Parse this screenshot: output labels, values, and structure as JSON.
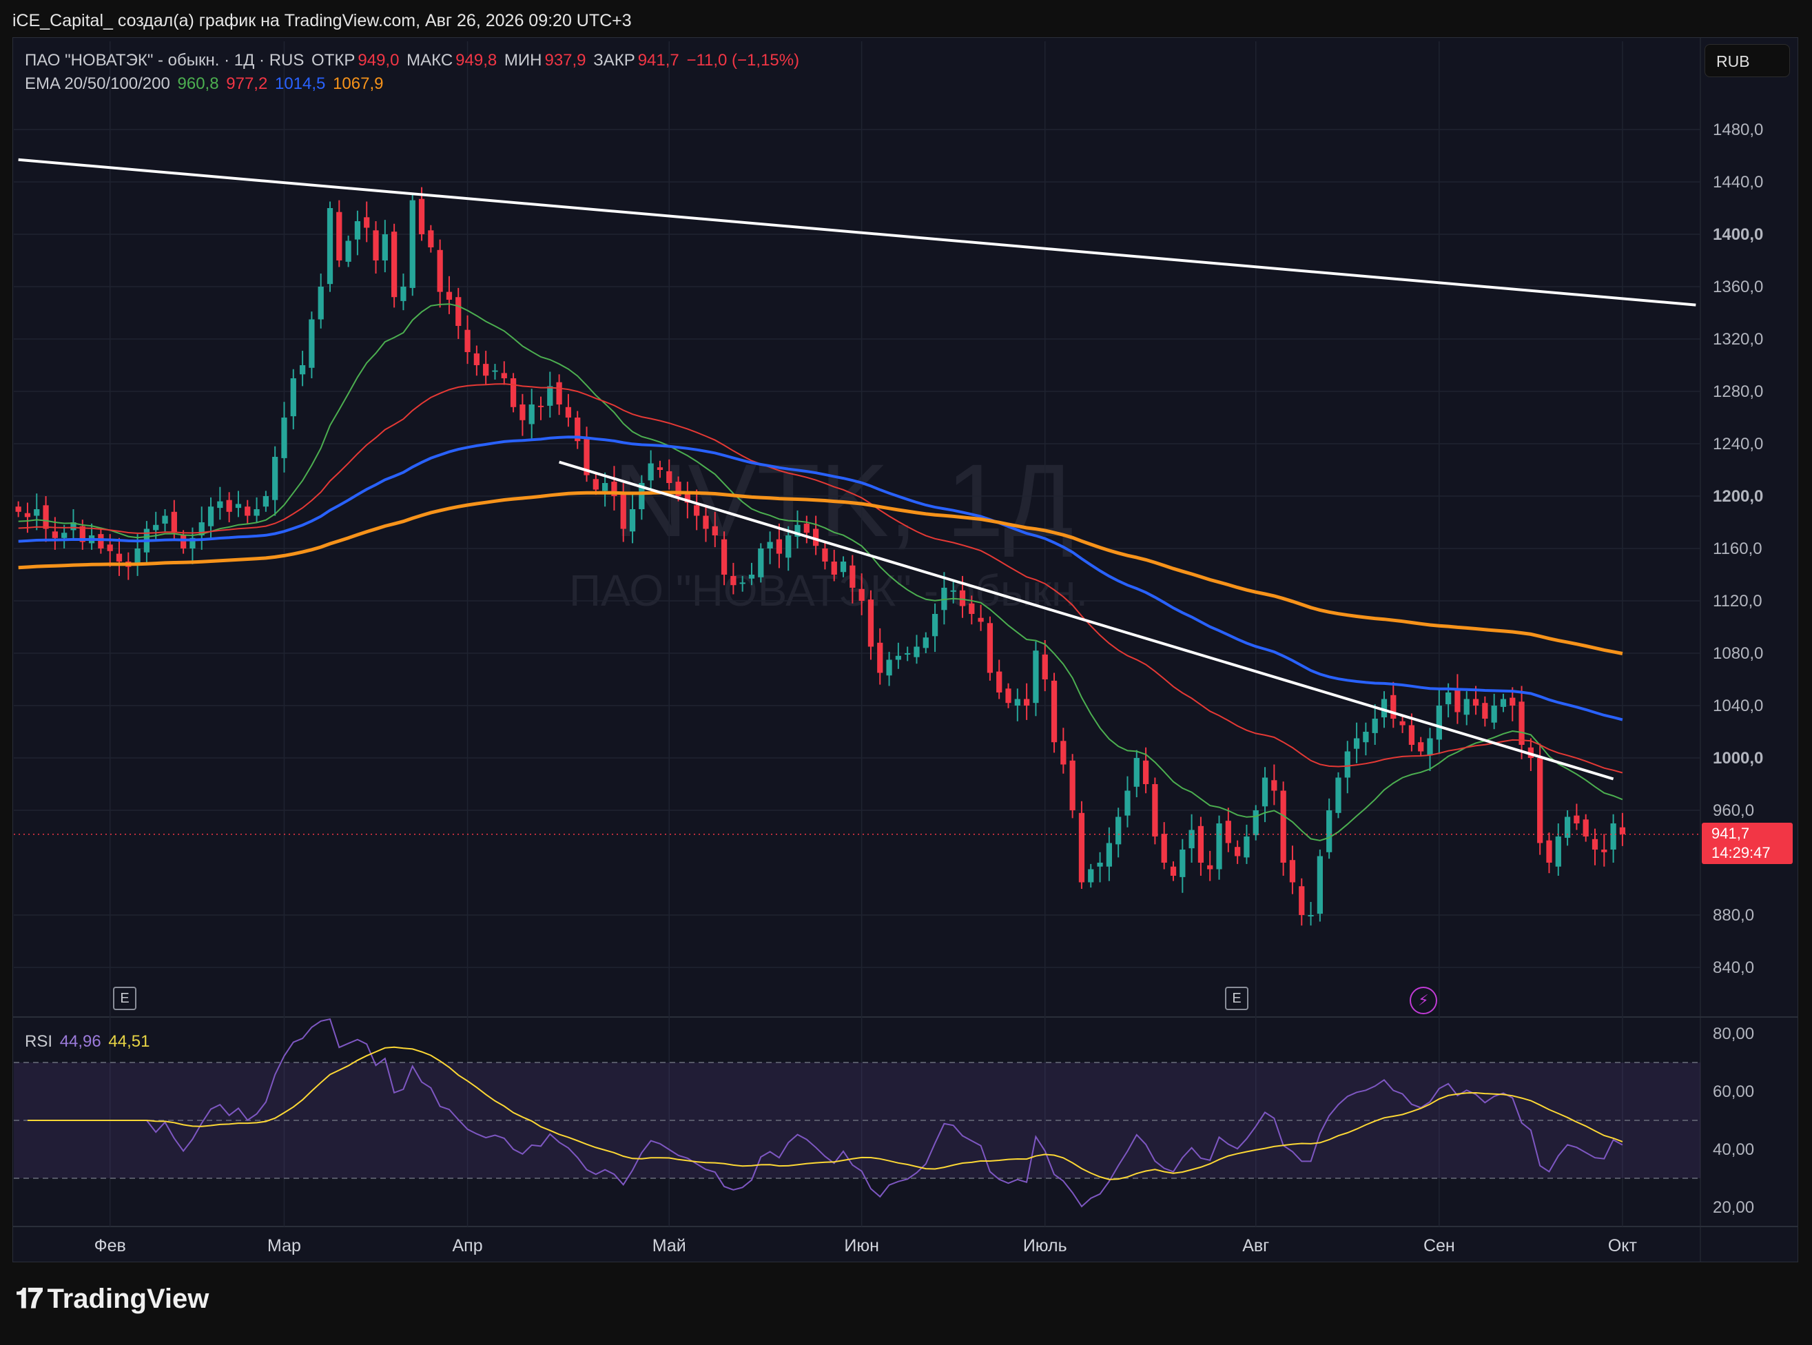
{
  "header": {
    "title": "iCE_Capital_ создал(а) график на TradingView.com, Авг 26, 2026 09:20 UTC+3"
  },
  "legend": {
    "symbol": "ПАО \"НОВАТЭК\" - обыкн. · 1Д · RUS",
    "open_label": "ОТКР",
    "open": "949,0",
    "high_label": "МАКС",
    "high": "949,8",
    "low_label": "МИН",
    "low": "937,9",
    "close_label": "ЗАКР",
    "close": "941,7",
    "change": "−11,0 (−1,15%)",
    "ema_label": "EMA 20/50/100/200",
    "ema20": "960,8",
    "ema50": "977,2",
    "ema100": "1014,5",
    "ema200": "1067,9",
    "rsi_label": "RSI",
    "rsi": "44,96",
    "rsi_ma": "44,51"
  },
  "currency": "RUB",
  "event_marker": "E",
  "price_tag": {
    "price": "941,7",
    "countdown": "14:29:47"
  },
  "watermark": {
    "ticker": "NVTK, 1Д",
    "name": "ПАО \"НОВАТЭК\" - обыкн."
  },
  "footer": {
    "brand": "TradingView"
  },
  "colors": {
    "up": "#26a69a",
    "down": "#f23645",
    "ema20": "#4caf50",
    "ema50": "#e53935",
    "ema100": "#2962ff",
    "ema200": "#f7931a",
    "rsi": "#7e57c2",
    "rsi_ma": "#fdd835"
  },
  "chart_data": [
    {
      "type": "candlestick",
      "title": "ПАО \"НОВАТЭК\" - обыкн. · 1Д · RUS",
      "ylim": [
        820,
        1480
      ],
      "yticks": [
        1480,
        1440,
        1400,
        1360,
        1320,
        1280,
        1240,
        1200,
        1160,
        1120,
        1080,
        1040,
        1000,
        960,
        880,
        840
      ],
      "ytick_labels": [
        "1480,0",
        "1440,0",
        "1400,0",
        "1360,0",
        "1320,0",
        "1280,0",
        "1240,0",
        "1200,0",
        "1160,0",
        "1120,0",
        "1080,0",
        "1040,0",
        "1000,0",
        "960,0",
        "880,0",
        "840,0"
      ],
      "x_months": [
        "Фев",
        "Мар",
        "Апр",
        "Май",
        "Июн",
        "Июль",
        "Авг",
        "Сен",
        "Окт"
      ],
      "x_month_day_index": [
        10,
        29,
        49,
        71,
        92,
        112,
        135,
        155,
        175
      ],
      "current_price": 941.7,
      "closes": [
        1188,
        1184,
        1190,
        1175,
        1168,
        1172,
        1180,
        1165,
        1170,
        1160,
        1158,
        1150,
        1146,
        1160,
        1175,
        1178,
        1185,
        1172,
        1160,
        1168,
        1180,
        1192,
        1196,
        1188,
        1194,
        1185,
        1190,
        1200,
        1230,
        1260,
        1290,
        1300,
        1335,
        1360,
        1420,
        1380,
        1395,
        1410,
        1405,
        1380,
        1400,
        1352,
        1360,
        1426,
        1400,
        1390,
        1356,
        1350,
        1330,
        1310,
        1300,
        1292,
        1296,
        1290,
        1268,
        1258,
        1270,
        1268,
        1284,
        1270,
        1260,
        1242,
        1216,
        1205,
        1210,
        1200,
        1175,
        1190,
        1210,
        1225,
        1220,
        1210,
        1200,
        1195,
        1185,
        1175,
        1170,
        1140,
        1132,
        1134,
        1140,
        1160,
        1165,
        1156,
        1170,
        1178,
        1172,
        1162,
        1150,
        1140,
        1150,
        1130,
        1120,
        1085,
        1065,
        1075,
        1078,
        1080,
        1085,
        1092,
        1110,
        1130,
        1128,
        1116,
        1110,
        1104,
        1065,
        1050,
        1042,
        1045,
        1040,
        1082,
        1060,
        1012,
        995,
        960,
        905,
        915,
        920,
        935,
        955,
        975,
        1000,
        980,
        940,
        920,
        910,
        930,
        945,
        920,
        915,
        950,
        935,
        925,
        940,
        960,
        985,
        975,
        920,
        905,
        880,
        880,
        925,
        960,
        985,
        1005,
        1015,
        1020,
        1030,
        1045,
        1030,
        1025,
        1010,
        1005,
        1015,
        1040,
        1050,
        1035,
        1045,
        1040,
        1030,
        1040,
        1045,
        1040,
        1010,
        1000,
        935,
        920,
        940,
        955,
        950,
        940,
        930,
        928,
        950,
        941.7
      ],
      "ema": {
        "ema20": 960.8,
        "ema50": 977.2,
        "ema100": 1014.5,
        "ema200": 1067.9
      },
      "trendlines": [
        {
          "from": {
            "day": 0,
            "price": 1457
          },
          "to": {
            "day": 183,
            "price": 1346
          }
        },
        {
          "from": {
            "day": 59,
            "price": 1226
          },
          "to": {
            "day": 174,
            "price": 984
          }
        }
      ]
    },
    {
      "type": "line",
      "title": "RSI",
      "ylim": [
        15,
        85
      ],
      "yticks": [
        80,
        60,
        40,
        20
      ],
      "ytick_labels": [
        "80,00",
        "60,00",
        "40,00",
        "20,00"
      ],
      "bands": [
        30,
        50,
        70
      ],
      "series": [
        {
          "name": "RSI",
          "value": 44.96
        },
        {
          "name": "MA",
          "value": 44.51
        }
      ]
    }
  ]
}
